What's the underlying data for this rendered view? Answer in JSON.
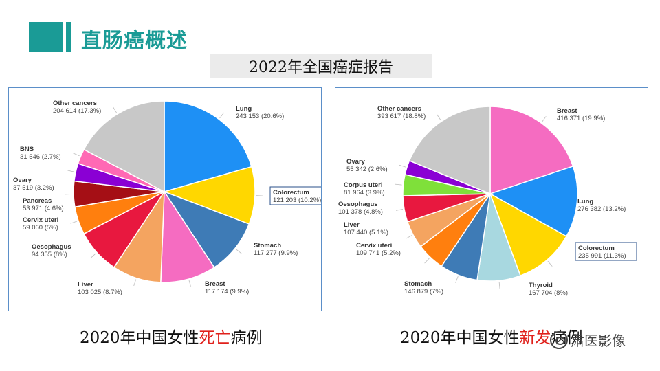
{
  "header": {
    "title": "直肠癌概述"
  },
  "subtitle": "2022年全国癌症报告",
  "captions": {
    "left": {
      "prefix": "2020年中国女性",
      "highlight": "死亡",
      "suffix": "病例"
    },
    "right": {
      "prefix": "2020年中国女性",
      "highlight": "新发",
      "suffix": "病例"
    }
  },
  "watermark": "肃医影像",
  "colors": {
    "accent": "#1a9b96",
    "highlight": "#e0201b",
    "panel_border": "#5b8fc9"
  },
  "chart_data": [
    {
      "type": "pie",
      "title": "2020年中国女性死亡病例",
      "highlighted": "Colorectum",
      "slices": [
        {
          "name": "Lung",
          "value": 243153,
          "label": "243 153 (20.6%)",
          "color": "#1e90f5"
        },
        {
          "name": "Colorectum",
          "value": 121203,
          "label": "121 203 (10.2%)",
          "color": "#ffd700"
        },
        {
          "name": "Stomach",
          "value": 117277,
          "label": "117 277 (9.9%)",
          "color": "#3e7bb6"
        },
        {
          "name": "Breast",
          "value": 117174,
          "label": "117 174 (9.9%)",
          "color": "#f56cc1"
        },
        {
          "name": "Liver",
          "value": 103025,
          "label": "103 025 (8.7%)",
          "color": "#f4a460"
        },
        {
          "name": "Oesophagus",
          "value": 94355,
          "label": "94 355 (8%)",
          "color": "#e8183f"
        },
        {
          "name": "Cervix uteri",
          "value": 59060,
          "label": "59 060 (5%)",
          "color": "#ff7f0e"
        },
        {
          "name": "Pancreas",
          "value": 53971,
          "label": "53 971 (4.6%)",
          "color": "#a50f15"
        },
        {
          "name": "Ovary",
          "value": 37519,
          "label": "37 519 (3.2%)",
          "color": "#8a00d4"
        },
        {
          "name": "BNS",
          "value": 31546,
          "label": "31 546 (2.7%)",
          "color": "#ff69b4"
        },
        {
          "name": "Other cancers",
          "value": 204614,
          "label": "204 614 (17.3%)",
          "color": "#c8c8c8"
        }
      ]
    },
    {
      "type": "pie",
      "title": "2020年中国女性新发病例",
      "highlighted": "Colorectum",
      "slices": [
        {
          "name": "Breast",
          "value": 416371,
          "label": "416 371 (19.9%)",
          "color": "#f56cc1"
        },
        {
          "name": "Lung",
          "value": 276382,
          "label": "276 382 (13.2%)",
          "color": "#1e90f5"
        },
        {
          "name": "Colorectum",
          "value": 235991,
          "label": "235 991 (11.3%)",
          "color": "#ffd700"
        },
        {
          "name": "Thyroid",
          "value": 167704,
          "label": "167 704 (8%)",
          "color": "#a8d8e0"
        },
        {
          "name": "Stomach",
          "value": 146879,
          "label": "146 879 (7%)",
          "color": "#3e7bb6"
        },
        {
          "name": "Cervix uteri",
          "value": 109741,
          "label": "109 741 (5.2%)",
          "color": "#ff7f0e"
        },
        {
          "name": "Liver",
          "value": 107440,
          "label": "107 440 (5.1%)",
          "color": "#f4a460"
        },
        {
          "name": "Oesophagus",
          "value": 101378,
          "label": "101 378 (4.8%)",
          "color": "#e8183f"
        },
        {
          "name": "Corpus uteri",
          "value": 81964,
          "label": "81 964 (3.9%)",
          "color": "#7fe03a"
        },
        {
          "name": "Ovary",
          "value": 55342,
          "label": "55 342 (2.6%)",
          "color": "#8a00d4"
        },
        {
          "name": "Other cancers",
          "value": 393617,
          "label": "393 617 (18.8%)",
          "color": "#c8c8c8"
        }
      ]
    }
  ]
}
